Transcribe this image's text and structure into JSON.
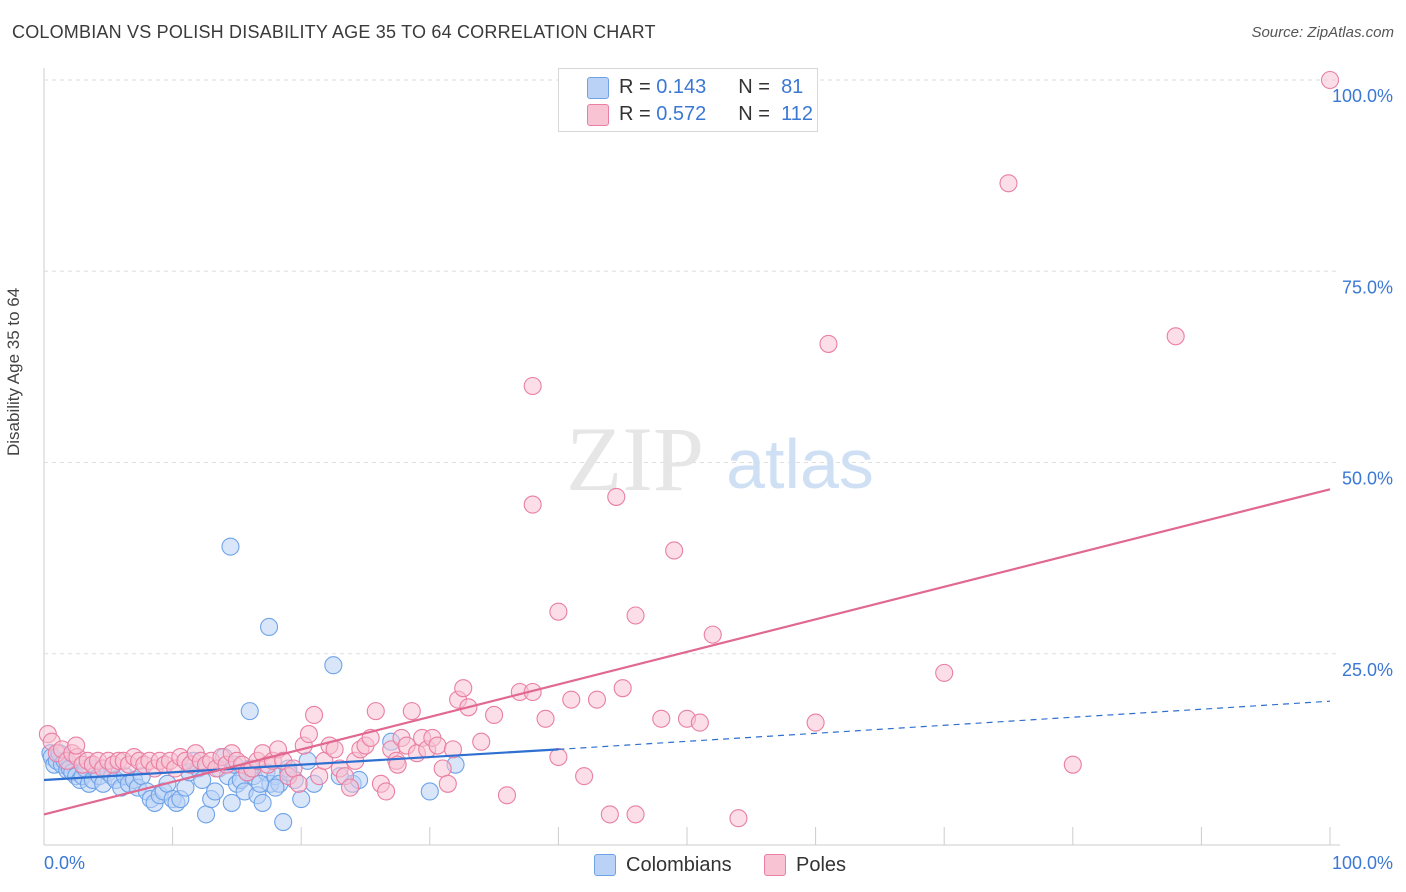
{
  "title": "COLOMBIAN VS POLISH DISABILITY AGE 35 TO 64 CORRELATION CHART",
  "source": "Source: ZipAtlas.com",
  "watermark": {
    "zip": "ZIP",
    "atlas": "atlas"
  },
  "legend": {
    "r_label": "R =",
    "n_label": "N =",
    "series": [
      {
        "name": "Colombians",
        "r": "0.143",
        "n": "81",
        "color": "#6fa3e8",
        "fill": "#b9d2f5"
      },
      {
        "name": "Poles",
        "r": "0.572",
        "n": "112",
        "color": "#e97fa3",
        "fill": "#f8c3d3"
      }
    ]
  },
  "colors": {
    "blue_line": "#2f6fd0",
    "pink_line": "#e06891",
    "tick_label": "#3b78d4"
  },
  "chart_data": {
    "type": "scatter",
    "title": "COLOMBIAN VS POLISH DISABILITY AGE 35 TO 64 CORRELATION CHART",
    "xlabel": "",
    "ylabel": "Disability Age 35 to 64",
    "xlim": [
      0,
      100
    ],
    "ylim": [
      0,
      100
    ],
    "x_tick_labels": [
      "0.0%",
      "100.0%"
    ],
    "y_ticks": [
      {
        "value": 100,
        "label": "100.0%"
      },
      {
        "value": 75,
        "label": "75.0%"
      },
      {
        "value": 50,
        "label": "50.0%"
      },
      {
        "value": 25,
        "label": "25.0%"
      }
    ],
    "grid": true,
    "series": [
      {
        "name": "Colombians",
        "trend": {
          "x0": 0,
          "y0": 8.5,
          "x1": 40,
          "y1": 12.5,
          "dash_to_x": 100,
          "dash_to_y": 18.8
        },
        "points": [
          [
            0.5,
            12
          ],
          [
            0.6,
            11.5
          ],
          [
            0.8,
            10.5
          ],
          [
            1,
            11
          ],
          [
            1.2,
            12
          ],
          [
            1.4,
            10.5
          ],
          [
            1.6,
            11
          ],
          [
            1.8,
            9.8
          ],
          [
            2,
            10
          ],
          [
            2.2,
            9.5
          ],
          [
            2.5,
            9
          ],
          [
            2.8,
            8.5
          ],
          [
            3,
            9
          ],
          [
            3.2,
            10
          ],
          [
            3.5,
            8
          ],
          [
            3.8,
            8.5
          ],
          [
            4,
            10
          ],
          [
            4.3,
            9
          ],
          [
            4.6,
            8
          ],
          [
            5,
            9.5
          ],
          [
            5.3,
            9
          ],
          [
            5.6,
            8.5
          ],
          [
            6,
            7.5
          ],
          [
            6.3,
            9
          ],
          [
            6.6,
            8
          ],
          [
            7,
            8.5
          ],
          [
            7.3,
            7.5
          ],
          [
            7.6,
            9
          ],
          [
            8,
            7
          ],
          [
            8.3,
            6
          ],
          [
            8.6,
            5.5
          ],
          [
            9,
            6.5
          ],
          [
            9.3,
            7
          ],
          [
            9.6,
            8
          ],
          [
            10,
            6
          ],
          [
            10.3,
            5.5
          ],
          [
            10.6,
            6
          ],
          [
            11,
            7.5
          ],
          [
            11.3,
            9.5
          ],
          [
            11.6,
            11
          ],
          [
            12,
            10
          ],
          [
            12.3,
            8.5
          ],
          [
            12.6,
            4
          ],
          [
            13,
            6
          ],
          [
            13.3,
            7
          ],
          [
            13.6,
            10
          ],
          [
            14,
            11.5
          ],
          [
            14.3,
            9
          ],
          [
            14.6,
            5.5
          ],
          [
            15,
            8
          ],
          [
            15.3,
            8.5
          ],
          [
            15.6,
            7
          ],
          [
            16,
            10
          ],
          [
            16.3,
            9
          ],
          [
            16.6,
            6.5
          ],
          [
            17,
            5.5
          ],
          [
            17.3,
            9.5
          ],
          [
            17.6,
            8
          ],
          [
            18,
            9
          ],
          [
            18.3,
            8
          ],
          [
            18.6,
            3
          ],
          [
            19,
            10
          ],
          [
            19.5,
            8.5
          ],
          [
            20,
            6
          ],
          [
            14.5,
            39
          ],
          [
            17.5,
            28.5
          ],
          [
            22.5,
            23.5
          ],
          [
            16,
            17.5
          ],
          [
            27,
            13.5
          ],
          [
            32,
            10.5
          ],
          [
            30,
            7
          ],
          [
            24,
            8
          ],
          [
            19,
            9.5
          ],
          [
            20.5,
            11
          ],
          [
            18,
            7.5
          ],
          [
            21,
            8
          ],
          [
            23,
            9
          ],
          [
            16.8,
            8
          ],
          [
            14.8,
            10.5
          ],
          [
            15.8,
            9.5
          ],
          [
            24.5,
            8.5
          ]
        ]
      },
      {
        "name": "Poles",
        "trend": {
          "x0": 0,
          "y0": 4,
          "x1": 100,
          "y1": 46.5
        },
        "points": [
          [
            0.3,
            14.5
          ],
          [
            0.6,
            13.5
          ],
          [
            1,
            12
          ],
          [
            1.4,
            12.5
          ],
          [
            1.8,
            11
          ],
          [
            2.2,
            12
          ],
          [
            2.6,
            11.5
          ],
          [
            3,
            10.5
          ],
          [
            3.4,
            11
          ],
          [
            3.8,
            10.5
          ],
          [
            4.2,
            11
          ],
          [
            4.6,
            10
          ],
          [
            5,
            11
          ],
          [
            5.4,
            10.5
          ],
          [
            5.8,
            11
          ],
          [
            6.2,
            11
          ],
          [
            6.6,
            10.5
          ],
          [
            7,
            11.5
          ],
          [
            7.4,
            11
          ],
          [
            7.8,
            10.5
          ],
          [
            8.2,
            11
          ],
          [
            8.6,
            10
          ],
          [
            9,
            11
          ],
          [
            9.4,
            10.5
          ],
          [
            9.8,
            11
          ],
          [
            10.2,
            10
          ],
          [
            10.6,
            11.5
          ],
          [
            11,
            11
          ],
          [
            11.4,
            10.5
          ],
          [
            11.8,
            12
          ],
          [
            12.2,
            11
          ],
          [
            12.6,
            10.5
          ],
          [
            13,
            11
          ],
          [
            13.4,
            10
          ],
          [
            13.8,
            11.5
          ],
          [
            14.2,
            10.5
          ],
          [
            14.6,
            12
          ],
          [
            15,
            11
          ],
          [
            15.4,
            10.5
          ],
          [
            15.8,
            9.5
          ],
          [
            16.2,
            10
          ],
          [
            16.6,
            11
          ],
          [
            17,
            12
          ],
          [
            17.4,
            10.5
          ],
          [
            17.8,
            11
          ],
          [
            18.2,
            12.5
          ],
          [
            18.6,
            11
          ],
          [
            19,
            9
          ],
          [
            19.4,
            10
          ],
          [
            19.8,
            8
          ],
          [
            20.2,
            13
          ],
          [
            20.6,
            14.5
          ],
          [
            21,
            17
          ],
          [
            21.4,
            9
          ],
          [
            21.8,
            11
          ],
          [
            22.2,
            13
          ],
          [
            22.6,
            12.5
          ],
          [
            23,
            10
          ],
          [
            23.4,
            9
          ],
          [
            23.8,
            7.5
          ],
          [
            24.2,
            11
          ],
          [
            24.6,
            12.5
          ],
          [
            25,
            13
          ],
          [
            25.4,
            14
          ],
          [
            25.8,
            17.5
          ],
          [
            26.2,
            8
          ],
          [
            26.6,
            7
          ],
          [
            27,
            12.5
          ],
          [
            27.4,
            11
          ],
          [
            27.8,
            14
          ],
          [
            28.2,
            13
          ],
          [
            28.6,
            17.5
          ],
          [
            29,
            12
          ],
          [
            29.4,
            14
          ],
          [
            29.8,
            12.5
          ],
          [
            30.2,
            14
          ],
          [
            30.6,
            13
          ],
          [
            31,
            10
          ],
          [
            31.4,
            8
          ],
          [
            31.8,
            12.5
          ],
          [
            32.2,
            19
          ],
          [
            32.6,
            20.5
          ],
          [
            33,
            18
          ],
          [
            34,
            13.5
          ],
          [
            35,
            17
          ],
          [
            36,
            6.5
          ],
          [
            37,
            20
          ],
          [
            38,
            20
          ],
          [
            39,
            16.5
          ],
          [
            40,
            11.5
          ],
          [
            41,
            19
          ],
          [
            42,
            9
          ],
          [
            43,
            19
          ],
          [
            44,
            4
          ],
          [
            45,
            20.5
          ],
          [
            46,
            4
          ],
          [
            48,
            16.5
          ],
          [
            50,
            16.5
          ],
          [
            51,
            16
          ],
          [
            54,
            3.5
          ],
          [
            60,
            16
          ],
          [
            70,
            22.5
          ],
          [
            80,
            10.5
          ],
          [
            38,
            44.5
          ],
          [
            44.5,
            45.5
          ],
          [
            49,
            38.5
          ],
          [
            40,
            30.5
          ],
          [
            46,
            30
          ],
          [
            52,
            27.5
          ],
          [
            61,
            65.5
          ],
          [
            38,
            60
          ],
          [
            75,
            86.5
          ],
          [
            88,
            66.5
          ],
          [
            100,
            100
          ],
          [
            2.5,
            13
          ],
          [
            27.5,
            10.5
          ]
        ]
      }
    ]
  },
  "axis": {
    "y_title": "Disability Age 35 to 64"
  }
}
